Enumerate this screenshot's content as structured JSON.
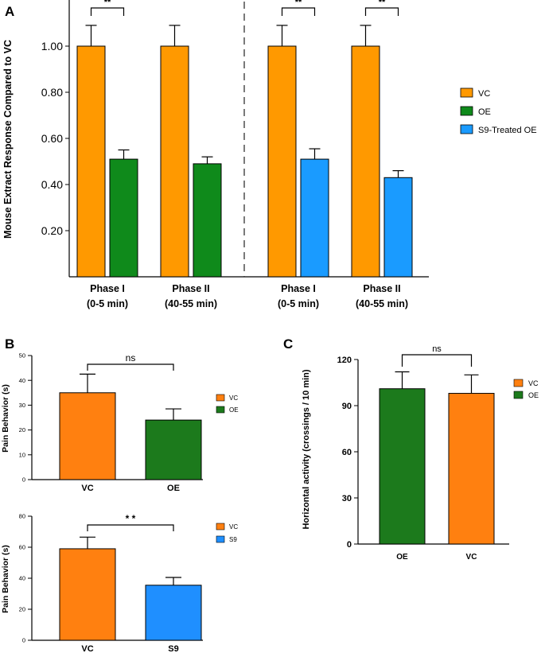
{
  "chart_data": [
    {
      "panel": "A",
      "type": "bar",
      "ylabel": "Mouse Extract Response Compared to VC",
      "ylim": [
        0,
        1.2
      ],
      "yticks": [
        "0.20",
        "0.40",
        "0.60",
        "0.80",
        "1.00"
      ],
      "groups": [
        {
          "label_line1": "Phase I",
          "label_line2": "(0-5 min)",
          "bars": [
            {
              "series": "VC",
              "value": 1.0,
              "error": 0.09,
              "color": "#ff9900"
            },
            {
              "series": "OE",
              "value": 0.51,
              "error": 0.04,
              "color": "#0f8a1b"
            }
          ]
        },
        {
          "label_line1": "Phase II",
          "label_line2": "(40-55 min)",
          "bars": [
            {
              "series": "VC",
              "value": 1.0,
              "error": 0.09,
              "color": "#ff9900"
            },
            {
              "series": "OE",
              "value": 0.49,
              "error": 0.03,
              "color": "#0f8a1b"
            }
          ]
        },
        {
          "label_line1": "Phase I",
          "label_line2": "(0-5 min)",
          "bars": [
            {
              "series": "VC",
              "value": 1.0,
              "error": 0.09,
              "color": "#ff9900"
            },
            {
              "series": "S9-Treated OE",
              "value": 0.51,
              "error": 0.045,
              "color": "#1a9bff"
            }
          ]
        },
        {
          "label_line1": "Phase II",
          "label_line2": "(40-55 min)",
          "bars": [
            {
              "series": "VC",
              "value": 1.0,
              "error": 0.09,
              "color": "#ff9900"
            },
            {
              "series": "S9-Treated OE",
              "value": 0.43,
              "error": 0.03,
              "color": "#1a9bff"
            }
          ]
        }
      ],
      "significance": [
        "**",
        "**",
        "**"
      ],
      "legend": [
        {
          "label": "VC",
          "color": "#ff9900"
        },
        {
          "label": "OE",
          "color": "#0f8a1b"
        },
        {
          "label": "S9-Treated OE",
          "color": "#1a9bff"
        }
      ]
    },
    {
      "panel": "B",
      "type": "bar",
      "ylabel": "Pain Behavior (s)",
      "ylim": [
        0,
        50
      ],
      "yticks": [
        "0",
        "10",
        "20",
        "30",
        "40",
        "50"
      ],
      "categories": [
        "VC",
        "OE"
      ],
      "values": [
        35,
        24
      ],
      "errors": [
        7.5,
        4.5
      ],
      "colors": [
        "#ff8010",
        "#1c7a1c"
      ],
      "significance": "ns",
      "legend": [
        {
          "label": "VC",
          "color": "#ff8010"
        },
        {
          "label": "OE",
          "color": "#1c7a1c"
        }
      ]
    },
    {
      "panel": "",
      "type": "bar",
      "ylabel": "Pain Behavior (s)",
      "ylim": [
        0,
        80
      ],
      "yticks": [
        "0",
        "20",
        "40",
        "60",
        "80"
      ],
      "categories": [
        "VC",
        "S9"
      ],
      "values": [
        59,
        35.5
      ],
      "errors": [
        7.5,
        5
      ],
      "colors": [
        "#ff8010",
        "#1f8fff"
      ],
      "significance": "* *",
      "legend": [
        {
          "label": "VC",
          "color": "#ff8010"
        },
        {
          "label": "S9",
          "color": "#1f8fff"
        }
      ]
    },
    {
      "panel": "C",
      "type": "bar",
      "ylabel": "Horizontal activity (crossings / 10 min)",
      "ylim": [
        0,
        120
      ],
      "yticks": [
        "0",
        "30",
        "60",
        "90",
        "120"
      ],
      "categories": [
        "OE",
        "VC"
      ],
      "values": [
        101,
        98
      ],
      "errors": [
        11,
        12
      ],
      "colors": [
        "#1c7a1c",
        "#ff8010"
      ],
      "significance": "ns",
      "legend": [
        {
          "label": "VC",
          "color": "#ff8010"
        },
        {
          "label": "OE",
          "color": "#1c7a1c"
        }
      ]
    }
  ]
}
